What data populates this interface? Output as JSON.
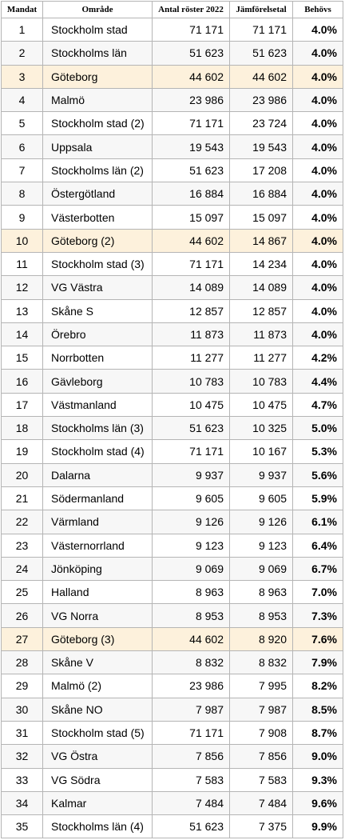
{
  "table": {
    "headers": [
      "Mandat",
      "Område",
      "Antal röster 2022",
      "Jämförelsetal",
      "Behövs"
    ],
    "highlight_color": "#fdf1dc",
    "rows": [
      {
        "mandat": "1",
        "omrade": "Stockholm stad",
        "antal": "71 171",
        "jamforelsetal": "71 171",
        "behovs": "4.0%",
        "highlight": false
      },
      {
        "mandat": "2",
        "omrade": "Stockholms län",
        "antal": "51 623",
        "jamforelsetal": "51 623",
        "behovs": "4.0%",
        "highlight": false
      },
      {
        "mandat": "3",
        "omrade": "Göteborg",
        "antal": "44 602",
        "jamforelsetal": "44 602",
        "behovs": "4.0%",
        "highlight": true
      },
      {
        "mandat": "4",
        "omrade": "Malmö",
        "antal": "23 986",
        "jamforelsetal": "23 986",
        "behovs": "4.0%",
        "highlight": false
      },
      {
        "mandat": "5",
        "omrade": "Stockholm stad (2)",
        "antal": "71 171",
        "jamforelsetal": "23 724",
        "behovs": "4.0%",
        "highlight": false
      },
      {
        "mandat": "6",
        "omrade": "Uppsala",
        "antal": "19 543",
        "jamforelsetal": "19 543",
        "behovs": "4.0%",
        "highlight": false
      },
      {
        "mandat": "7",
        "omrade": "Stockholms län (2)",
        "antal": "51 623",
        "jamforelsetal": "17 208",
        "behovs": "4.0%",
        "highlight": false
      },
      {
        "mandat": "8",
        "omrade": "Östergötland",
        "antal": "16 884",
        "jamforelsetal": "16 884",
        "behovs": "4.0%",
        "highlight": false
      },
      {
        "mandat": "9",
        "omrade": "Västerbotten",
        "antal": "15 097",
        "jamforelsetal": "15 097",
        "behovs": "4.0%",
        "highlight": false
      },
      {
        "mandat": "10",
        "omrade": "Göteborg (2)",
        "antal": "44 602",
        "jamforelsetal": "14 867",
        "behovs": "4.0%",
        "highlight": true
      },
      {
        "mandat": "11",
        "omrade": "Stockholm stad (3)",
        "antal": "71 171",
        "jamforelsetal": "14 234",
        "behovs": "4.0%",
        "highlight": false
      },
      {
        "mandat": "12",
        "omrade": "VG Västra",
        "antal": "14 089",
        "jamforelsetal": "14 089",
        "behovs": "4.0%",
        "highlight": false
      },
      {
        "mandat": "13",
        "omrade": "Skåne S",
        "antal": "12 857",
        "jamforelsetal": "12 857",
        "behovs": "4.0%",
        "highlight": false
      },
      {
        "mandat": "14",
        "omrade": "Örebro",
        "antal": "11 873",
        "jamforelsetal": "11 873",
        "behovs": "4.0%",
        "highlight": false
      },
      {
        "mandat": "15",
        "omrade": "Norrbotten",
        "antal": "11 277",
        "jamforelsetal": "11 277",
        "behovs": "4.2%",
        "highlight": false
      },
      {
        "mandat": "16",
        "omrade": "Gävleborg",
        "antal": "10 783",
        "jamforelsetal": "10 783",
        "behovs": "4.4%",
        "highlight": false
      },
      {
        "mandat": "17",
        "omrade": "Västmanland",
        "antal": "10 475",
        "jamforelsetal": "10 475",
        "behovs": "4.7%",
        "highlight": false
      },
      {
        "mandat": "18",
        "omrade": "Stockholms län (3)",
        "antal": "51 623",
        "jamforelsetal": "10 325",
        "behovs": "5.0%",
        "highlight": false
      },
      {
        "mandat": "19",
        "omrade": "Stockholm stad (4)",
        "antal": "71 171",
        "jamforelsetal": "10 167",
        "behovs": "5.3%",
        "highlight": false
      },
      {
        "mandat": "20",
        "omrade": "Dalarna",
        "antal": "9 937",
        "jamforelsetal": "9 937",
        "behovs": "5.6%",
        "highlight": false
      },
      {
        "mandat": "21",
        "omrade": "Södermanland",
        "antal": "9 605",
        "jamforelsetal": "9 605",
        "behovs": "5.9%",
        "highlight": false
      },
      {
        "mandat": "22",
        "omrade": "Värmland",
        "antal": "9 126",
        "jamforelsetal": "9 126",
        "behovs": "6.1%",
        "highlight": false
      },
      {
        "mandat": "23",
        "omrade": "Västernorrland",
        "antal": "9 123",
        "jamforelsetal": "9 123",
        "behovs": "6.4%",
        "highlight": false
      },
      {
        "mandat": "24",
        "omrade": "Jönköping",
        "antal": "9 069",
        "jamforelsetal": "9 069",
        "behovs": "6.7%",
        "highlight": false
      },
      {
        "mandat": "25",
        "omrade": "Halland",
        "antal": "8 963",
        "jamforelsetal": "8 963",
        "behovs": "7.0%",
        "highlight": false
      },
      {
        "mandat": "26",
        "omrade": "VG Norra",
        "antal": "8 953",
        "jamforelsetal": "8 953",
        "behovs": "7.3%",
        "highlight": false
      },
      {
        "mandat": "27",
        "omrade": "Göteborg (3)",
        "antal": "44 602",
        "jamforelsetal": "8 920",
        "behovs": "7.6%",
        "highlight": true
      },
      {
        "mandat": "28",
        "omrade": "Skåne V",
        "antal": "8 832",
        "jamforelsetal": "8 832",
        "behovs": "7.9%",
        "highlight": false
      },
      {
        "mandat": "29",
        "omrade": "Malmö (2)",
        "antal": "23 986",
        "jamforelsetal": "7 995",
        "behovs": "8.2%",
        "highlight": false
      },
      {
        "mandat": "30",
        "omrade": "Skåne NO",
        "antal": "7 987",
        "jamforelsetal": "7 987",
        "behovs": "8.5%",
        "highlight": false
      },
      {
        "mandat": "31",
        "omrade": "Stockholm stad (5)",
        "antal": "71 171",
        "jamforelsetal": "7 908",
        "behovs": "8.7%",
        "highlight": false
      },
      {
        "mandat": "32",
        "omrade": "VG Östra",
        "antal": "7 856",
        "jamforelsetal": "7 856",
        "behovs": "9.0%",
        "highlight": false
      },
      {
        "mandat": "33",
        "omrade": "VG Södra",
        "antal": "7 583",
        "jamforelsetal": "7 583",
        "behovs": "9.3%",
        "highlight": false
      },
      {
        "mandat": "34",
        "omrade": "Kalmar",
        "antal": "7 484",
        "jamforelsetal": "7 484",
        "behovs": "9.6%",
        "highlight": false
      },
      {
        "mandat": "35",
        "omrade": "Stockholms län (4)",
        "antal": "51 623",
        "jamforelsetal": "7 375",
        "behovs": "9.9%",
        "highlight": false
      }
    ]
  }
}
